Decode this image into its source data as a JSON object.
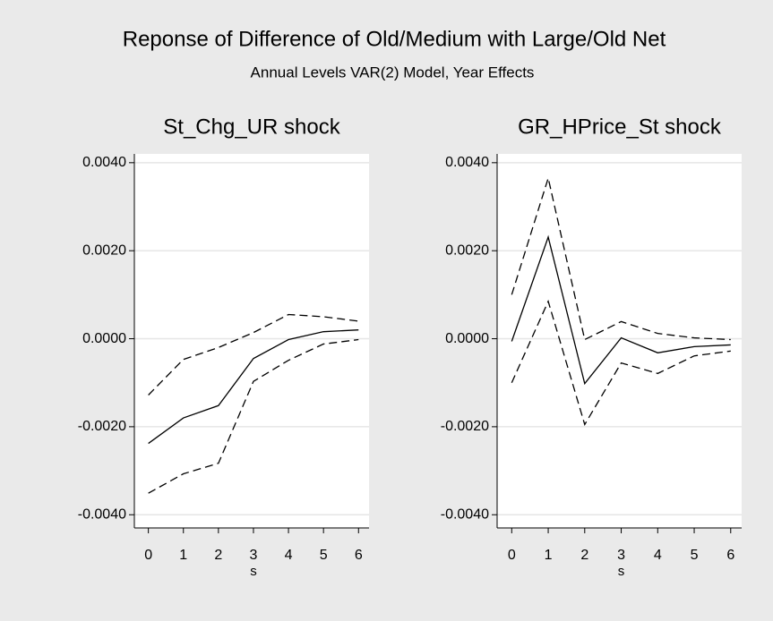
{
  "title": "Reponse of Difference of Old/Medium with Large/Old Net",
  "subtitle": "Annual Levels VAR(2) Model, Year Effects",
  "chart_data": [
    {
      "type": "line",
      "title": "St_Chg_UR shock",
      "xlabel": "s",
      "x": [
        0,
        1,
        2,
        3,
        4,
        5,
        6
      ],
      "xlim": [
        -0.4,
        6.3
      ],
      "xticks": [
        0,
        1,
        2,
        3,
        4,
        5,
        6
      ],
      "ylim": [
        -0.0043,
        0.0042
      ],
      "yticks": [
        {
          "value": -0.004,
          "label": "-0.0040"
        },
        {
          "value": -0.002,
          "label": "-0.0020"
        },
        {
          "value": 0,
          "label": "0.0000"
        },
        {
          "value": 0.002,
          "label": "0.0020"
        },
        {
          "value": 0.004,
          "label": "0.0040"
        }
      ],
      "grid": true,
      "series": [
        {
          "color": "#000000",
          "dashed": true,
          "values": [
            -0.00351,
            -0.00307,
            -0.00283,
            -0.00097,
            -0.00049,
            -0.00012,
            -2e-05
          ]
        },
        {
          "color": "#000000",
          "dashed": false,
          "values": [
            -0.00238,
            -0.0018,
            -0.00152,
            -0.00045,
            -2e-05,
            0.00016,
            0.0002
          ]
        },
        {
          "color": "#000000",
          "dashed": true,
          "values": [
            -0.00128,
            -0.00047,
            -0.0002,
            0.00014,
            0.00055,
            0.0005,
            0.0004
          ]
        }
      ]
    },
    {
      "type": "line",
      "title": "GR_HPrice_St shock",
      "xlabel": "s",
      "x": [
        0,
        1,
        2,
        3,
        4,
        5,
        6
      ],
      "xlim": [
        -0.4,
        6.3
      ],
      "xticks": [
        0,
        1,
        2,
        3,
        4,
        5,
        6
      ],
      "ylim": [
        -0.0043,
        0.0042
      ],
      "yticks": [
        {
          "value": -0.004,
          "label": "-0.0040"
        },
        {
          "value": -0.002,
          "label": "-0.0020"
        },
        {
          "value": 0,
          "label": "0.0000"
        },
        {
          "value": 0.002,
          "label": "0.0020"
        },
        {
          "value": 0.004,
          "label": "0.0040"
        }
      ],
      "grid": true,
      "series": [
        {
          "color": "#000000",
          "dashed": true,
          "values": [
            -0.001,
            0.00085,
            -0.00195,
            -0.00055,
            -0.00079,
            -0.00039,
            -0.00028
          ]
        },
        {
          "color": "#000000",
          "dashed": false,
          "values": [
            -6e-05,
            0.00231,
            -0.00102,
            2e-05,
            -0.00032,
            -0.00018,
            -0.00014
          ]
        },
        {
          "color": "#000000",
          "dashed": true,
          "values": [
            0.001,
            0.00365,
            -2e-05,
            0.00039,
            0.00012,
            2e-05,
            -2e-05
          ]
        }
      ]
    }
  ]
}
